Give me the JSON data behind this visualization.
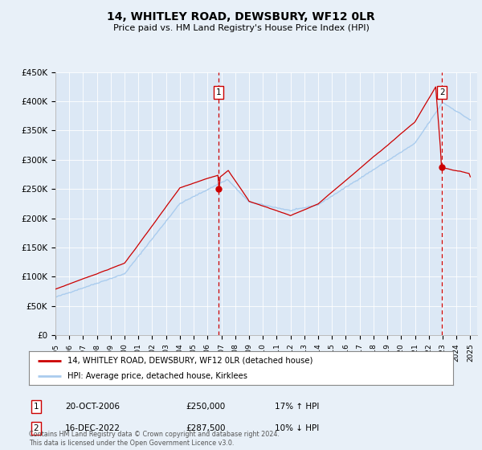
{
  "title": "14, WHITLEY ROAD, DEWSBURY, WF12 0LR",
  "subtitle": "Price paid vs. HM Land Registry's House Price Index (HPI)",
  "background_color": "#e8f0f8",
  "plot_bg_color": "#dce8f5",
  "xlim_start": 1995.0,
  "xlim_end": 2025.5,
  "ylim_min": 0,
  "ylim_max": 450000,
  "yticks": [
    0,
    50000,
    100000,
    150000,
    200000,
    250000,
    300000,
    350000,
    400000,
    450000
  ],
  "ytick_labels": [
    "£0",
    "£50K",
    "£100K",
    "£150K",
    "£200K",
    "£250K",
    "£300K",
    "£350K",
    "£400K",
    "£450K"
  ],
  "transaction1_x": 2006.8,
  "transaction1_y": 250000,
  "transaction1_label": "1",
  "transaction2_x": 2022.95,
  "transaction2_y": 287500,
  "transaction2_label": "2",
  "red_line_color": "#cc0000",
  "blue_line_color": "#aaccee",
  "legend_red_label": "14, WHITLEY ROAD, DEWSBURY, WF12 0LR (detached house)",
  "legend_blue_label": "HPI: Average price, detached house, Kirklees",
  "ann1_date": "20-OCT-2006",
  "ann1_price": "£250,000",
  "ann1_hpi": "17% ↑ HPI",
  "ann2_date": "16-DEC-2022",
  "ann2_price": "£287,500",
  "ann2_hpi": "10% ↓ HPI",
  "footer": "Contains HM Land Registry data © Crown copyright and database right 2024.\nThis data is licensed under the Open Government Licence v3.0."
}
